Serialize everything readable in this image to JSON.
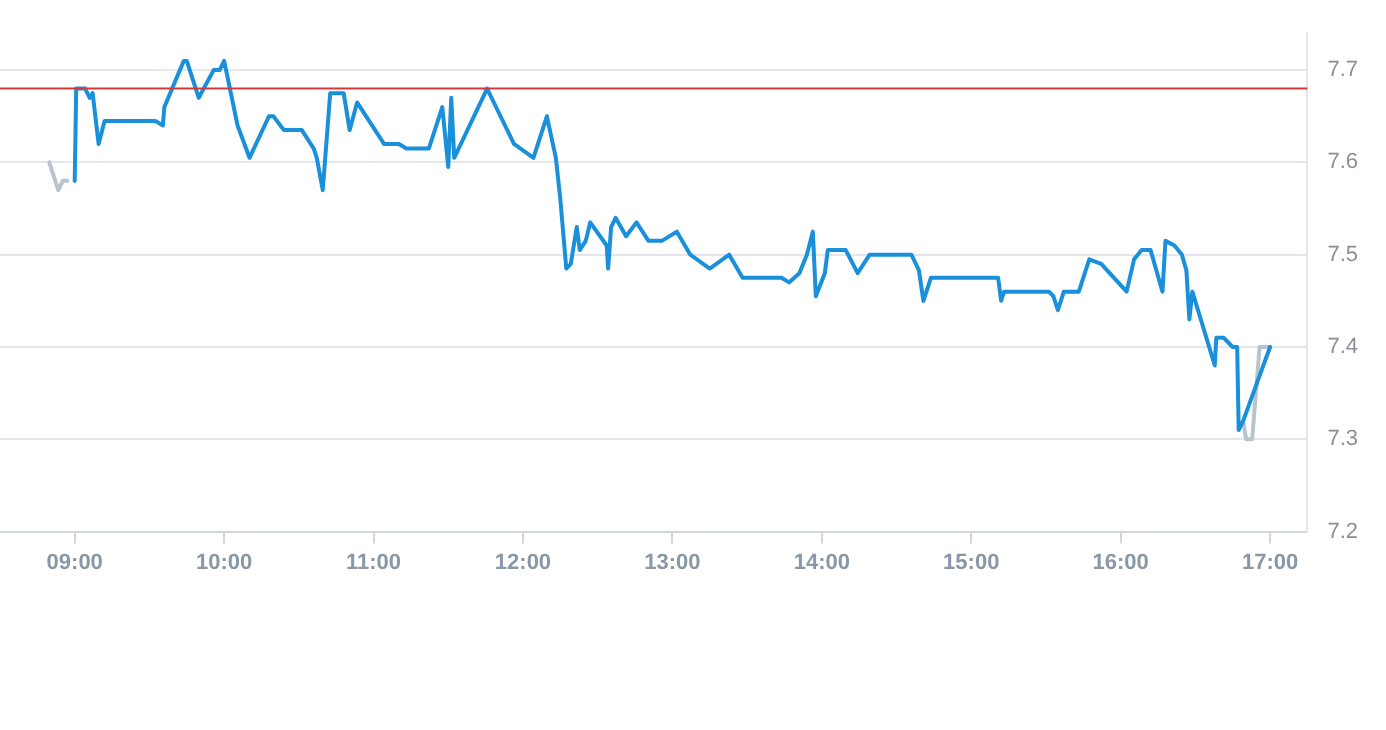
{
  "chart_data": {
    "type": "line",
    "xlim": [
      8.5,
      17.25
    ],
    "ylim": [
      7.2,
      7.74
    ],
    "xticks": [
      {
        "value": 9,
        "label": "09:00"
      },
      {
        "value": 10,
        "label": "10:00"
      },
      {
        "value": 11,
        "label": "11:00"
      },
      {
        "value": 12,
        "label": "12:00"
      },
      {
        "value": 13,
        "label": "13:00"
      },
      {
        "value": 14,
        "label": "14:00"
      },
      {
        "value": 15,
        "label": "15:00"
      },
      {
        "value": 16,
        "label": "16:00"
      },
      {
        "value": 17,
        "label": "17:00"
      }
    ],
    "yticks": [
      7.2,
      7.3,
      7.4,
      7.5,
      7.6,
      7.7
    ],
    "grid": "y",
    "legend": false,
    "marker": "none",
    "line_style": "solid",
    "ref_lines": [
      {
        "axis": "y",
        "value": 7.68,
        "color": "#d03a3a"
      }
    ],
    "series": [
      {
        "color": "#1a90db",
        "x": [
          9.0,
          9.01,
          9.07,
          9.1,
          9.12,
          9.16,
          9.2,
          9.54,
          9.59,
          9.6,
          9.73,
          9.75,
          9.83,
          9.93,
          9.97,
          10.0,
          10.09,
          10.17,
          10.3,
          10.33,
          10.4,
          10.52,
          10.6,
          10.62,
          10.66,
          10.71,
          10.8,
          10.84,
          10.89,
          11.07,
          11.17,
          11.22,
          11.37,
          11.46,
          11.5,
          11.52,
          11.54,
          11.76,
          11.94,
          12.07,
          12.16,
          12.22,
          12.25,
          12.29,
          12.32,
          12.36,
          12.38,
          12.42,
          12.45,
          12.56,
          12.57,
          12.59,
          12.62,
          12.69,
          12.76,
          12.84,
          12.93,
          13.03,
          13.12,
          13.25,
          13.38,
          13.47,
          13.73,
          13.78,
          13.85,
          13.9,
          13.94,
          13.96,
          14.02,
          14.04,
          14.16,
          14.24,
          14.32,
          14.6,
          14.65,
          14.68,
          14.73,
          15.18,
          15.2,
          15.22,
          15.52,
          15.55,
          15.58,
          15.62,
          15.72,
          15.79,
          15.87,
          16.04,
          16.09,
          16.14,
          16.2,
          16.28,
          16.3,
          16.36,
          16.41,
          16.44,
          16.46,
          16.48,
          16.63,
          16.64,
          16.69,
          16.75,
          16.78,
          16.79,
          16.82,
          17.0
        ],
        "values": [
          7.58,
          7.68,
          7.68,
          7.67,
          7.675,
          7.62,
          7.645,
          7.645,
          7.64,
          7.66,
          7.71,
          7.71,
          7.67,
          7.7,
          7.7,
          7.71,
          7.64,
          7.605,
          7.65,
          7.65,
          7.635,
          7.635,
          7.615,
          7.605,
          7.57,
          7.675,
          7.675,
          7.635,
          7.665,
          7.62,
          7.62,
          7.615,
          7.615,
          7.66,
          7.595,
          7.67,
          7.605,
          7.68,
          7.62,
          7.605,
          7.65,
          7.605,
          7.56,
          7.485,
          7.49,
          7.53,
          7.505,
          7.515,
          7.535,
          7.51,
          7.485,
          7.53,
          7.54,
          7.52,
          7.535,
          7.515,
          7.515,
          7.525,
          7.5,
          7.485,
          7.5,
          7.475,
          7.475,
          7.47,
          7.48,
          7.5,
          7.525,
          7.455,
          7.48,
          7.505,
          7.505,
          7.48,
          7.5,
          7.5,
          7.483,
          7.45,
          7.475,
          7.475,
          7.45,
          7.46,
          7.46,
          7.455,
          7.44,
          7.46,
          7.46,
          7.495,
          7.49,
          7.46,
          7.495,
          7.505,
          7.505,
          7.46,
          7.515,
          7.51,
          7.5,
          7.483,
          7.43,
          7.46,
          7.38,
          7.41,
          7.41,
          7.4,
          7.4,
          7.31,
          7.32,
          7.4
        ]
      },
      {
        "color": "#b8c4cc",
        "x": [
          8.83,
          8.89,
          8.92,
          8.95,
          12,
          16.82,
          16.84,
          16.88,
          16.93,
          17.0
        ],
        "values": [
          7.6,
          7.57,
          7.58,
          7.58,
          null,
          7.32,
          7.3,
          7.3,
          7.4,
          7.4
        ]
      }
    ]
  }
}
